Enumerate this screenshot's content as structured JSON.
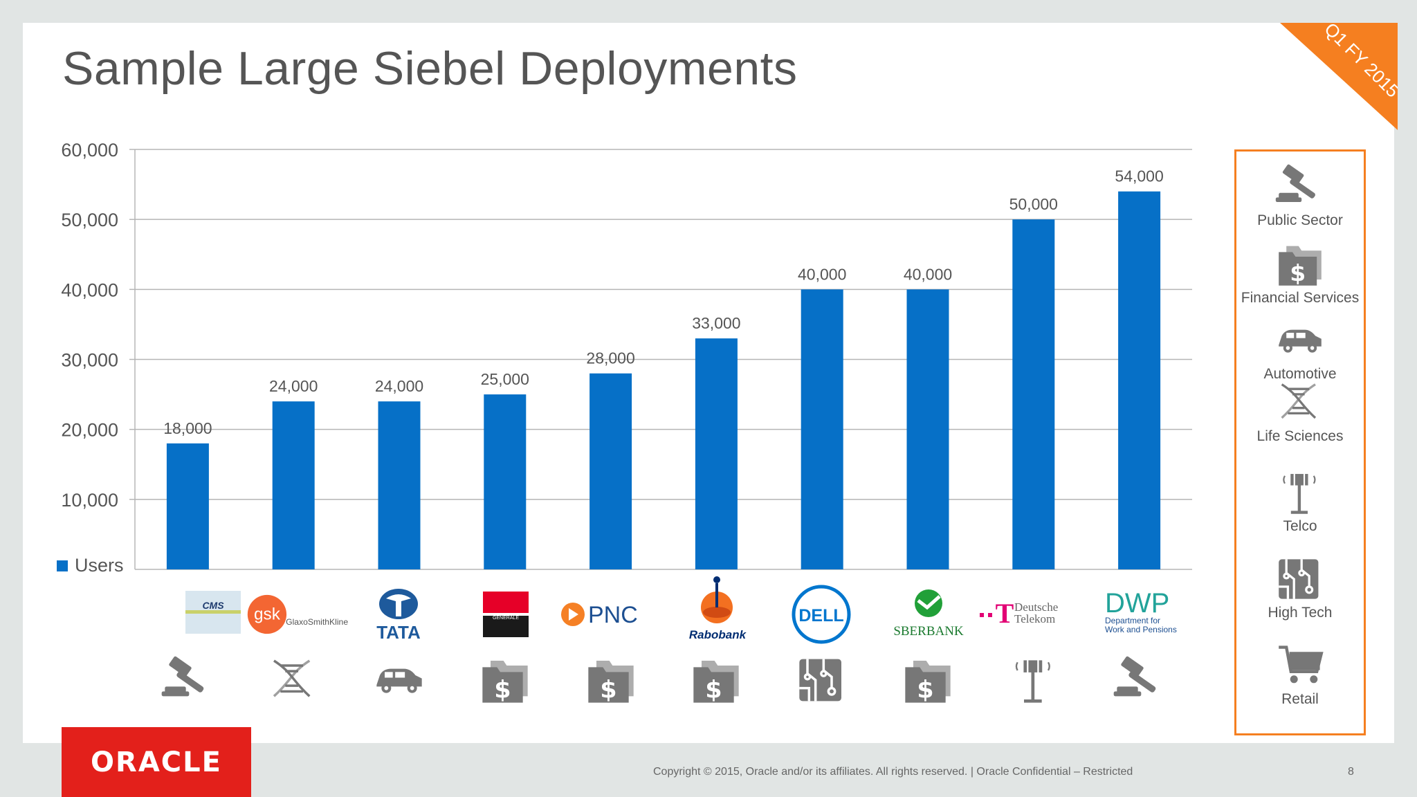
{
  "title": "Sample Large Siebel Deployments",
  "badge": "Q1 FY 2015",
  "legend_label": "Users",
  "chart_data": {
    "type": "bar",
    "categories": [
      "CMS",
      "GlaxoSmithKline",
      "TATA",
      "Societe Generale",
      "PNC",
      "Rabobank",
      "Dell",
      "Sberbank",
      "Deutsche Telekom",
      "DWP"
    ],
    "series": [
      {
        "name": "Users",
        "values": [
          18000,
          24000,
          24000,
          25000,
          28000,
          33000,
          40000,
          40000,
          50000,
          54000
        ]
      }
    ],
    "value_labels": [
      "18,000",
      "24,000",
      "24,000",
      "25,000",
      "28,000",
      "33,000",
      "40,000",
      "40,000",
      "50,000",
      "54,000"
    ],
    "yticks": [
      "10,000",
      "20,000",
      "30,000",
      "40,000",
      "50,000",
      "60,000"
    ],
    "ylim": [
      0,
      60000
    ],
    "grid": true,
    "legend": "bottom-left",
    "bar_color": "#0670c7"
  },
  "logos": [
    {
      "text": "CMS",
      "industry_icon": "gavel-icon"
    },
    {
      "text": "gsk",
      "sub": "GlaxoSmithKline",
      "industry_icon": "dna-icon"
    },
    {
      "text": "TATA",
      "industry_icon": "car-icon"
    },
    {
      "text": "GENERALE",
      "industry_icon": "dollar-folder-icon"
    },
    {
      "text": "PNC",
      "industry_icon": "dollar-folder-icon"
    },
    {
      "text": "Rabobank",
      "industry_icon": "dollar-folder-icon"
    },
    {
      "text": "DELL",
      "industry_icon": "circuit-icon"
    },
    {
      "text": "SBERBANK",
      "industry_icon": "dollar-folder-icon"
    },
    {
      "text": "Deutsche",
      "sub": "Telekom",
      "industry_icon": "antenna-icon"
    },
    {
      "text": "DWP",
      "sub": "Department for",
      "sub2": "Work and Pensions",
      "industry_icon": "gavel-icon"
    }
  ],
  "industries": [
    {
      "label": "Public Sector",
      "icon": "gavel-icon"
    },
    {
      "label": "Financial Services",
      "icon": "dollar-folder-icon"
    },
    {
      "label": "Automotive",
      "icon": "car-icon"
    },
    {
      "label": "Life Sciences",
      "icon": "dna-icon"
    },
    {
      "label": "Telco",
      "icon": "antenna-icon"
    },
    {
      "label": "High  Tech",
      "icon": "circuit-icon"
    },
    {
      "label": "Retail",
      "icon": "cart-icon"
    }
  ],
  "brand": "ORACLE",
  "footer": "Copyright © 2015, Oracle and/or its affiliates. All rights reserved.  |  Oracle Confidential – Restricted",
  "page_number": "8",
  "colors": {
    "accent": "#f57f20",
    "bar": "#0670c7",
    "oracle_red": "#e3201b"
  }
}
